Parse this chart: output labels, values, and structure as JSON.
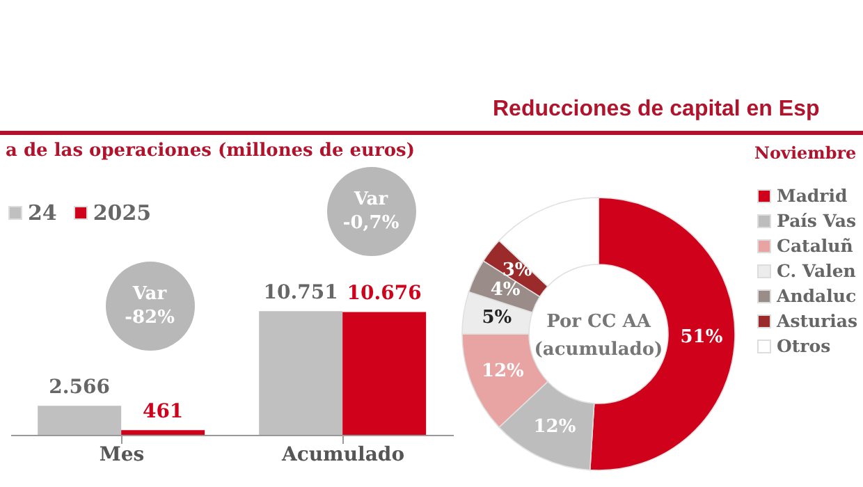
{
  "chart_data": [
    {
      "type": "bar",
      "subtitle": "a de las operaciones (millones de euros)",
      "categories": [
        "Mes",
        "Acumulado"
      ],
      "series": [
        {
          "name": "24",
          "color": "#c0c0c0",
          "values": [
            2566,
            10751
          ],
          "value_labels": [
            "2.566",
            "10.751"
          ]
        },
        {
          "name": "2025",
          "color": "#d0021b",
          "values": [
            461,
            10676
          ],
          "value_labels": [
            "461",
            "10.676"
          ]
        }
      ],
      "annotations": [
        "Var\n-82%",
        "Var\n-0,7%"
      ],
      "legend": "top left",
      "tick_labels": "x"
    },
    {
      "type": "donut",
      "title": "Reducciones de capital en Esp",
      "subtitle": "Noviembre",
      "categories": [
        "Madrid",
        "País Vas",
        "Cataluñ",
        "C. Valen",
        "Andaluc",
        "Asturias",
        "Otros"
      ],
      "values": [
        51,
        12,
        12,
        5,
        4,
        3,
        13
      ],
      "colors": [
        "#d0021b",
        "#bdbdbd",
        "#e8a3a3",
        "#ececec",
        "#9a8c88",
        "#9b2a2a",
        "#ffffff"
      ],
      "value_labels": [
        "51%",
        "12%",
        "12%",
        "5%",
        "4%",
        "3%",
        null
      ],
      "annotations": [
        "Por CC AA\n(acumulado)"
      ],
      "legend": "right"
    }
  ]
}
